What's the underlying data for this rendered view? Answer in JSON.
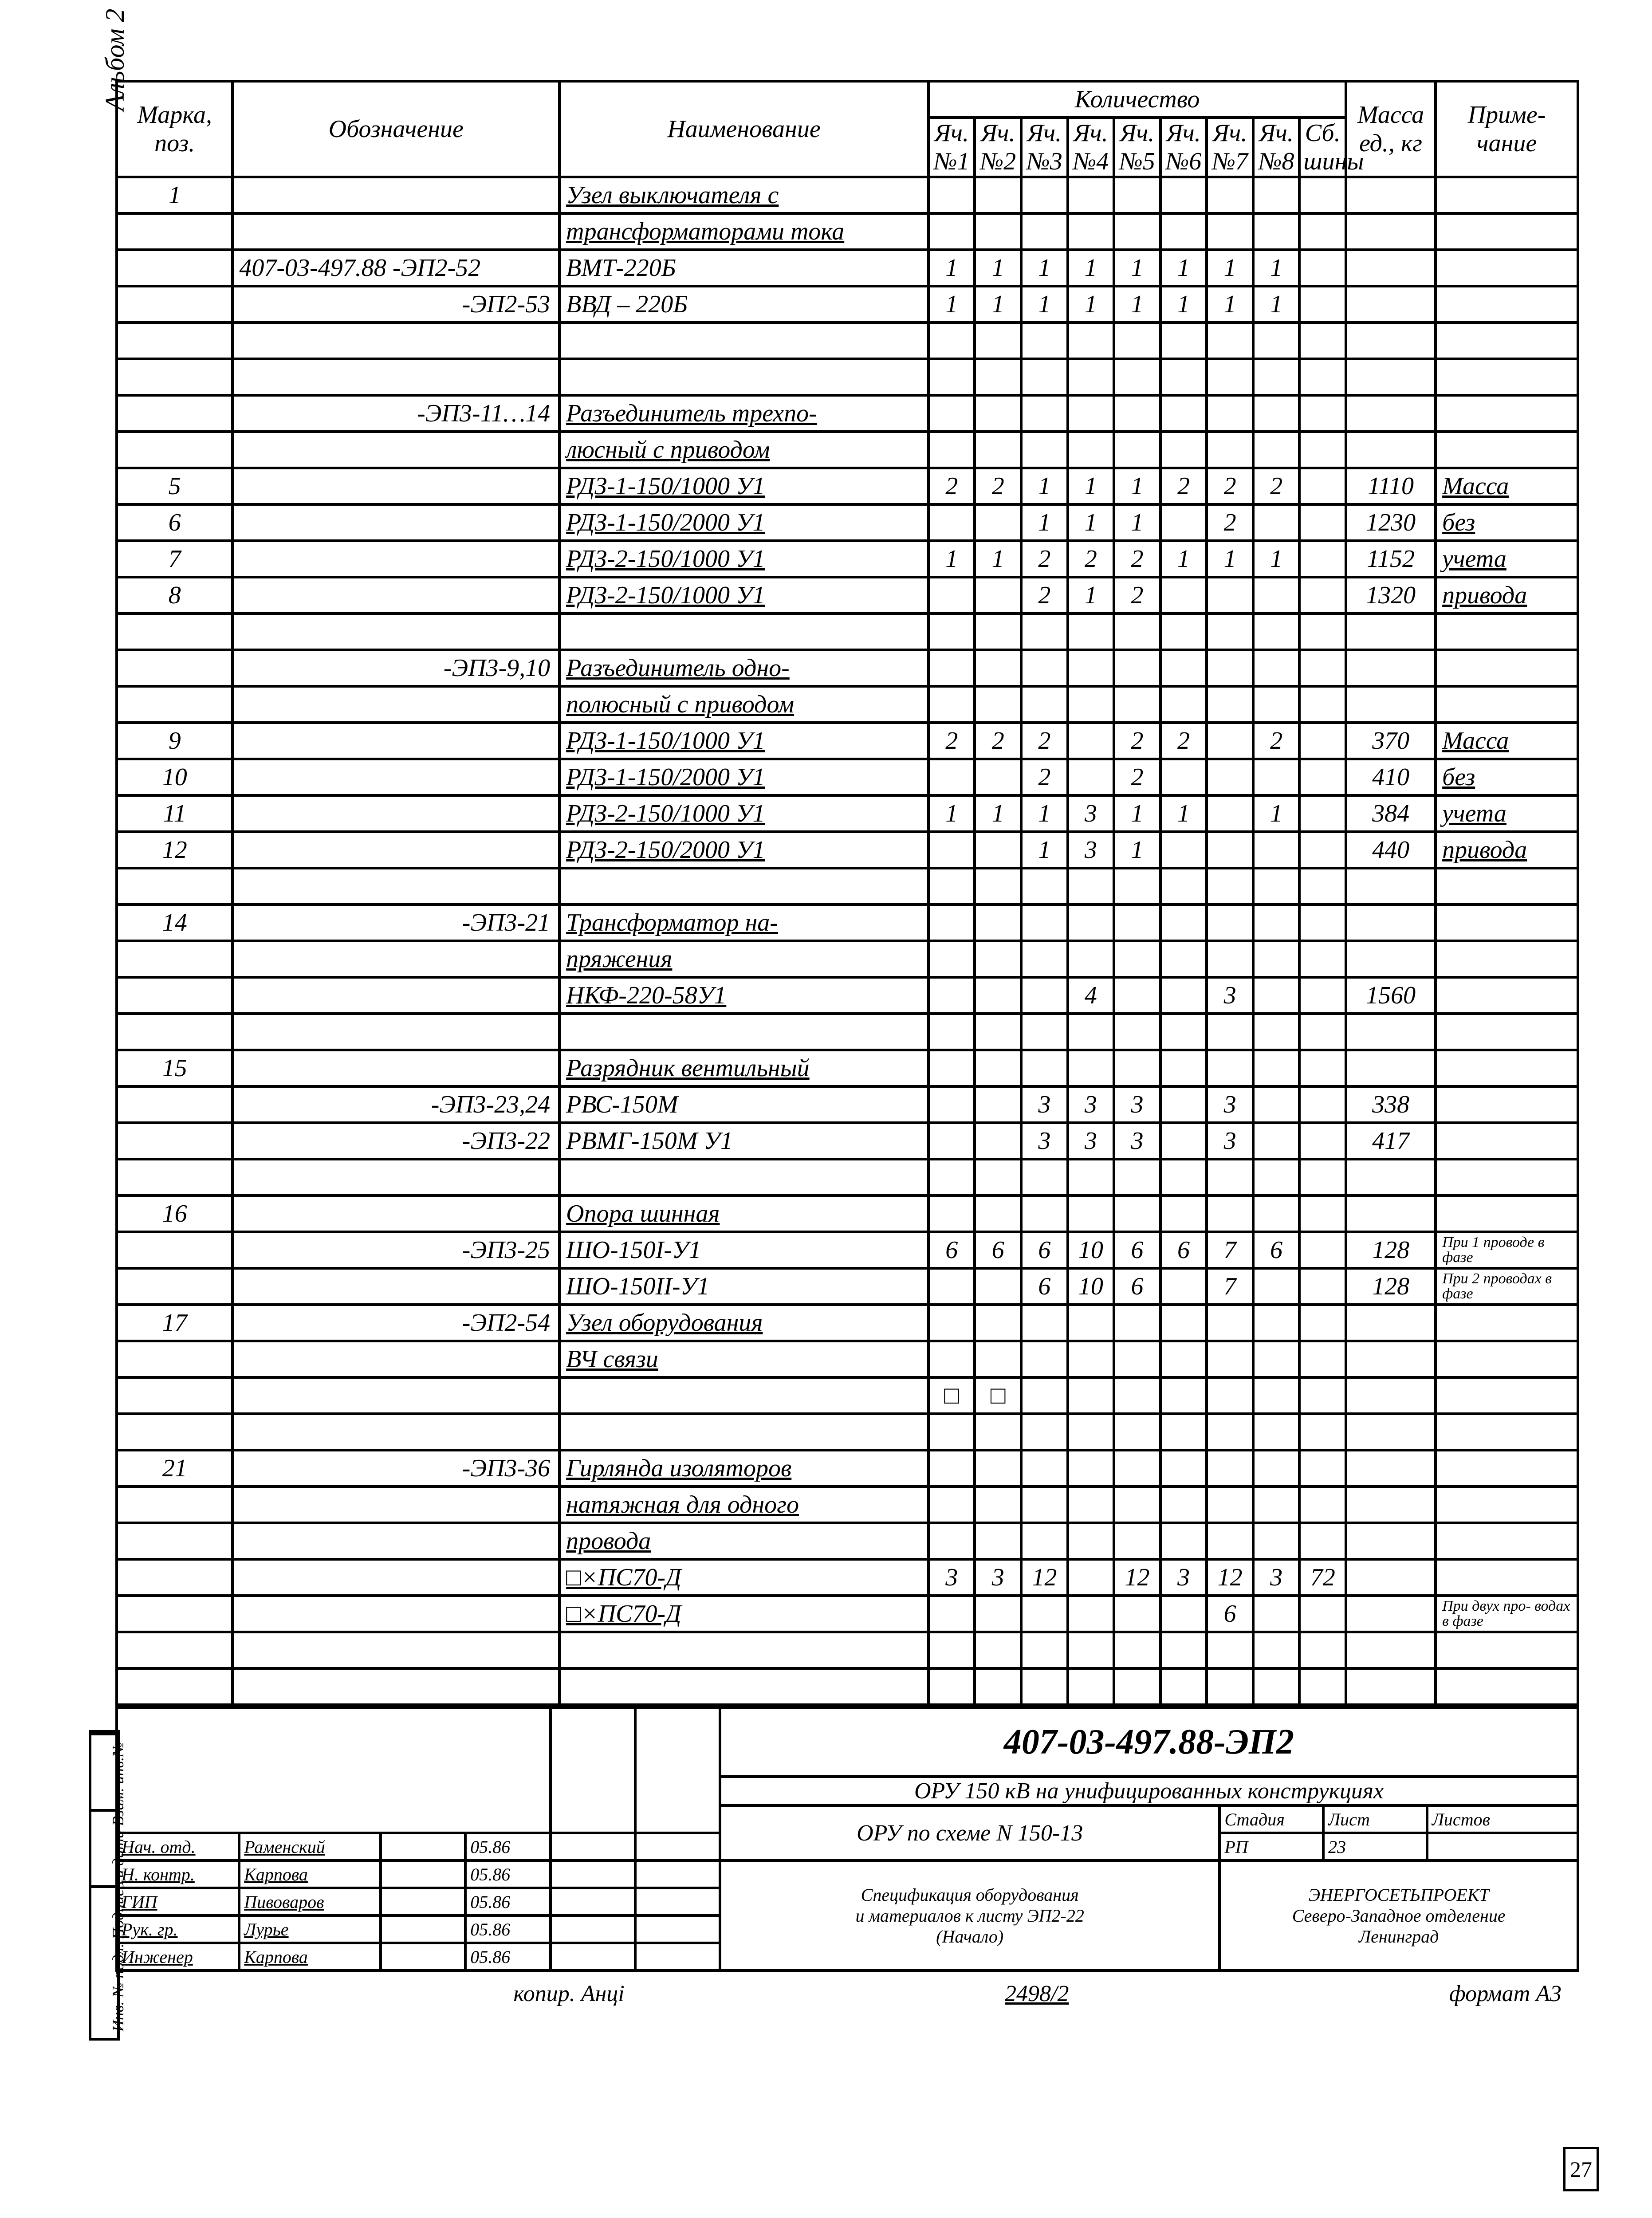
{
  "side_album": "Альбом 2",
  "side_stamp": "Инв. № подл. Подпись и дата Взам. инв.№",
  "header": {
    "pos": "Марка, поз.",
    "des": "Обозначение",
    "name": "Наименование",
    "qty": "Количество",
    "mass": "Масса ед., кг",
    "note": "Приме- чание",
    "sub": [
      "Яч. №1",
      "Яч. №2",
      "Яч. №3",
      "Яч. №4",
      "Яч. №5",
      "Яч. №6",
      "Яч. №7",
      "Яч. №8",
      "Сб. шины"
    ]
  },
  "rows": [
    {
      "pos": "1",
      "des": "",
      "name": "Узел выключателя с",
      "q": [
        "",
        "",
        "",
        "",
        "",
        "",
        "",
        "",
        ""
      ],
      "m": "",
      "n": "",
      "u": true
    },
    {
      "pos": "",
      "des": "",
      "name": "трансформаторами тока",
      "q": [
        "",
        "",
        "",
        "",
        "",
        "",
        "",
        "",
        ""
      ],
      "m": "",
      "n": "",
      "u": true
    },
    {
      "pos": "",
      "des": "407-03-497.88 -ЭП2-52",
      "name": "ВМТ-220Б",
      "q": [
        "1",
        "1",
        "1",
        "1",
        "1",
        "1",
        "1",
        "1",
        ""
      ],
      "m": "",
      "n": ""
    },
    {
      "pos": "",
      "des": "-ЭП2-53",
      "name": "ВВД – 220Б",
      "q": [
        "1",
        "1",
        "1",
        "1",
        "1",
        "1",
        "1",
        "1",
        ""
      ],
      "m": "",
      "n": "",
      "rdes": true
    },
    {
      "pos": "",
      "des": "",
      "name": "",
      "q": [
        "",
        "",
        "",
        "",
        "",
        "",
        "",
        "",
        ""
      ],
      "m": "",
      "n": ""
    },
    {
      "pos": "",
      "des": "",
      "name": "",
      "q": [
        "",
        "",
        "",
        "",
        "",
        "",
        "",
        "",
        ""
      ],
      "m": "",
      "n": ""
    },
    {
      "pos": "",
      "des": "-ЭП3-11…14",
      "name": "Разъединитель трехпо-",
      "q": [
        "",
        "",
        "",
        "",
        "",
        "",
        "",
        "",
        ""
      ],
      "m": "",
      "n": "",
      "u": true,
      "rdes": true
    },
    {
      "pos": "",
      "des": "",
      "name": "люсный с приводом",
      "q": [
        "",
        "",
        "",
        "",
        "",
        "",
        "",
        "",
        ""
      ],
      "m": "",
      "n": "",
      "u": true
    },
    {
      "pos": "5",
      "des": "",
      "name": "РДЗ-1-150/1000 У1",
      "q": [
        "2",
        "2",
        "1",
        "1",
        "1",
        "2",
        "2",
        "2",
        ""
      ],
      "m": "1110",
      "n": "Масса",
      "u": true,
      "un": true
    },
    {
      "pos": "6",
      "des": "",
      "name": "РДЗ-1-150/2000 У1",
      "q": [
        "",
        "",
        "1",
        "1",
        "1",
        "",
        "2",
        "",
        ""
      ],
      "m": "1230",
      "n": "без",
      "u": true,
      "un": true
    },
    {
      "pos": "7",
      "des": "",
      "name": "РДЗ-2-150/1000 У1",
      "q": [
        "1",
        "1",
        "2",
        "2",
        "2",
        "1",
        "1",
        "1",
        ""
      ],
      "m": "1152",
      "n": "учета",
      "u": true,
      "un": true
    },
    {
      "pos": "8",
      "des": "",
      "name": "РДЗ-2-150/1000 У1",
      "q": [
        "",
        "",
        "2",
        "1",
        "2",
        "",
        "",
        "",
        ""
      ],
      "m": "1320",
      "n": "привода",
      "u": true,
      "un": true
    },
    {
      "pos": "",
      "des": "",
      "name": "",
      "q": [
        "",
        "",
        "",
        "",
        "",
        "",
        "",
        "",
        ""
      ],
      "m": "",
      "n": ""
    },
    {
      "pos": "",
      "des": "-ЭП3-9,10",
      "name": "Разъединитель одно-",
      "q": [
        "",
        "",
        "",
        "",
        "",
        "",
        "",
        "",
        ""
      ],
      "m": "",
      "n": "",
      "u": true,
      "rdes": true
    },
    {
      "pos": "",
      "des": "",
      "name": "полюсный с приводом",
      "q": [
        "",
        "",
        "",
        "",
        "",
        "",
        "",
        "",
        ""
      ],
      "m": "",
      "n": "",
      "u": true
    },
    {
      "pos": "9",
      "des": "",
      "name": "РДЗ-1-150/1000 У1",
      "q": [
        "2",
        "2",
        "2",
        "",
        "2",
        "2",
        "",
        "2",
        ""
      ],
      "m": "370",
      "n": "Масса",
      "u": true,
      "un": true
    },
    {
      "pos": "10",
      "des": "",
      "name": "РДЗ-1-150/2000 У1",
      "q": [
        "",
        "",
        "2",
        "",
        "2",
        "",
        "",
        "",
        ""
      ],
      "m": "410",
      "n": "без",
      "u": true,
      "un": true
    },
    {
      "pos": "11",
      "des": "",
      "name": "РДЗ-2-150/1000 У1",
      "q": [
        "1",
        "1",
        "1",
        "3",
        "1",
        "1",
        "",
        "1",
        ""
      ],
      "m": "384",
      "n": "учета",
      "u": true,
      "un": true
    },
    {
      "pos": "12",
      "des": "",
      "name": "РДЗ-2-150/2000 У1",
      "q": [
        "",
        "",
        "1",
        "3",
        "1",
        "",
        "",
        "",
        ""
      ],
      "m": "440",
      "n": "привода",
      "u": true,
      "un": true
    },
    {
      "pos": "",
      "des": "",
      "name": "",
      "q": [
        "",
        "",
        "",
        "",
        "",
        "",
        "",
        "",
        ""
      ],
      "m": "",
      "n": ""
    },
    {
      "pos": "14",
      "des": "-ЭП3-21",
      "name": "Трансформатор на-",
      "q": [
        "",
        "",
        "",
        "",
        "",
        "",
        "",
        "",
        ""
      ],
      "m": "",
      "n": "",
      "u": true,
      "rdes": true
    },
    {
      "pos": "",
      "des": "",
      "name": "пряжения",
      "q": [
        "",
        "",
        "",
        "",
        "",
        "",
        "",
        "",
        ""
      ],
      "m": "",
      "n": "",
      "u": true
    },
    {
      "pos": "",
      "des": "",
      "name": "НКФ-220-58У1",
      "q": [
        "",
        "",
        "",
        "4",
        "",
        "",
        "3",
        "",
        ""
      ],
      "m": "1560",
      "n": "",
      "u": true
    },
    {
      "pos": "",
      "des": "",
      "name": "",
      "q": [
        "",
        "",
        "",
        "",
        "",
        "",
        "",
        "",
        ""
      ],
      "m": "",
      "n": ""
    },
    {
      "pos": "15",
      "des": "",
      "name": "Разрядник вентильный",
      "q": [
        "",
        "",
        "",
        "",
        "",
        "",
        "",
        "",
        ""
      ],
      "m": "",
      "n": "",
      "u": true
    },
    {
      "pos": "",
      "des": "-ЭП3-23,24",
      "name": "РВС-150М",
      "q": [
        "",
        "",
        "3",
        "3",
        "3",
        "",
        "3",
        "",
        ""
      ],
      "m": "338",
      "n": "",
      "rdes": true
    },
    {
      "pos": "",
      "des": "-ЭП3-22",
      "name": "РВМГ-150М У1",
      "q": [
        "",
        "",
        "3",
        "3",
        "3",
        "",
        "3",
        "",
        ""
      ],
      "m": "417",
      "n": "",
      "rdes": true
    },
    {
      "pos": "",
      "des": "",
      "name": "",
      "q": [
        "",
        "",
        "",
        "",
        "",
        "",
        "",
        "",
        ""
      ],
      "m": "",
      "n": ""
    },
    {
      "pos": "16",
      "des": "",
      "name": "Опора шинная",
      "q": [
        "",
        "",
        "",
        "",
        "",
        "",
        "",
        "",
        ""
      ],
      "m": "",
      "n": "",
      "u": true
    },
    {
      "pos": "",
      "des": "-ЭП3-25",
      "name": "ШО-150I-У1",
      "q": [
        "6",
        "6",
        "6",
        "10",
        "6",
        "6",
        "7",
        "6",
        ""
      ],
      "m": "128",
      "n": "При 1 проводе в фазе",
      "rdes": true,
      "sn": true
    },
    {
      "pos": "",
      "des": "",
      "name": "ШО-150II-У1",
      "q": [
        "",
        "",
        "6",
        "10",
        "6",
        "",
        "7",
        "",
        ""
      ],
      "m": "128",
      "n": "При 2 проводах в фазе",
      "sn": true
    },
    {
      "pos": "17",
      "des": "-ЭП2-54",
      "name": "Узел оборудования",
      "q": [
        "",
        "",
        "",
        "",
        "",
        "",
        "",
        "",
        ""
      ],
      "m": "",
      "n": "",
      "u": true,
      "rdes": true
    },
    {
      "pos": "",
      "des": "",
      "name": "ВЧ связи",
      "q": [
        "",
        "",
        "",
        "",
        "",
        "",
        "",
        "",
        ""
      ],
      "m": "",
      "n": "",
      "u": true
    },
    {
      "pos": "",
      "des": "",
      "name": "",
      "q": [
        "□",
        "□",
        "",
        "",
        "",
        "",
        "",
        "",
        ""
      ],
      "m": "",
      "n": ""
    },
    {
      "pos": "",
      "des": "",
      "name": "",
      "q": [
        "",
        "",
        "",
        "",
        "",
        "",
        "",
        "",
        ""
      ],
      "m": "",
      "n": ""
    },
    {
      "pos": "21",
      "des": "-ЭП3-36",
      "name": "Гирлянда изоляторов",
      "q": [
        "",
        "",
        "",
        "",
        "",
        "",
        "",
        "",
        ""
      ],
      "m": "",
      "n": "",
      "u": true,
      "rdes": true
    },
    {
      "pos": "",
      "des": "",
      "name": "натяжная для одного",
      "q": [
        "",
        "",
        "",
        "",
        "",
        "",
        "",
        "",
        ""
      ],
      "m": "",
      "n": "",
      "u": true
    },
    {
      "pos": "",
      "des": "",
      "name": "провода",
      "q": [
        "",
        "",
        "",
        "",
        "",
        "",
        "",
        "",
        ""
      ],
      "m": "",
      "n": "",
      "u": true
    },
    {
      "pos": "",
      "des": "",
      "name": "□×ПС70-Д",
      "q": [
        "3",
        "3",
        "12",
        "",
        "12",
        "3",
        "12",
        "3",
        "72"
      ],
      "m": "",
      "n": "",
      "u": true
    },
    {
      "pos": "",
      "des": "",
      "name": "□×ПС70-Д",
      "q": [
        "",
        "",
        "",
        "",
        "",
        "",
        "6",
        "",
        ""
      ],
      "m": "",
      "n": "При двух про- водах в фазе",
      "u": true,
      "sn": true
    },
    {
      "pos": "",
      "des": "",
      "name": "",
      "q": [
        "",
        "",
        "",
        "",
        "",
        "",
        "",
        "",
        ""
      ],
      "m": "",
      "n": ""
    },
    {
      "pos": "",
      "des": "",
      "name": "",
      "q": [
        "",
        "",
        "",
        "",
        "",
        "",
        "",
        "",
        ""
      ],
      "m": "",
      "n": ""
    }
  ],
  "title_block": {
    "code": "407-03-497.88-ЭП2",
    "line1": "ОРУ 150 кВ на унифицированных конструкциях",
    "line2": "ОРУ по схеме N 150-13",
    "stage_h": "Стадия",
    "sheet_h": "Лист",
    "sheets_h": "Листов",
    "stage": "РП",
    "sheet": "23",
    "sheets": "",
    "desc1": "Спецификация оборудования",
    "desc2": "и материалов к листу ЭП2-22",
    "desc3": "(Начало)",
    "org1": "ЭНЕРГОСЕТЬПРОЕКТ",
    "org2": "Северо-Западное отделение",
    "org3": "Ленинград",
    "roles": [
      [
        "Нач. отд.",
        "Раменский",
        "",
        "05.86"
      ],
      [
        "Н. контр.",
        "Карпова",
        "",
        "05.86"
      ],
      [
        "ГИП",
        "Пивоваров",
        "",
        "05.86"
      ],
      [
        "Рук. гр.",
        "Лурье",
        "",
        "05.86"
      ],
      [
        "Инженер",
        "Карпова",
        "",
        "05.86"
      ]
    ]
  },
  "footer": {
    "copy": "копир. Анці",
    "num": "2498/2",
    "fmt": "формат А3"
  },
  "pgnum": "27"
}
